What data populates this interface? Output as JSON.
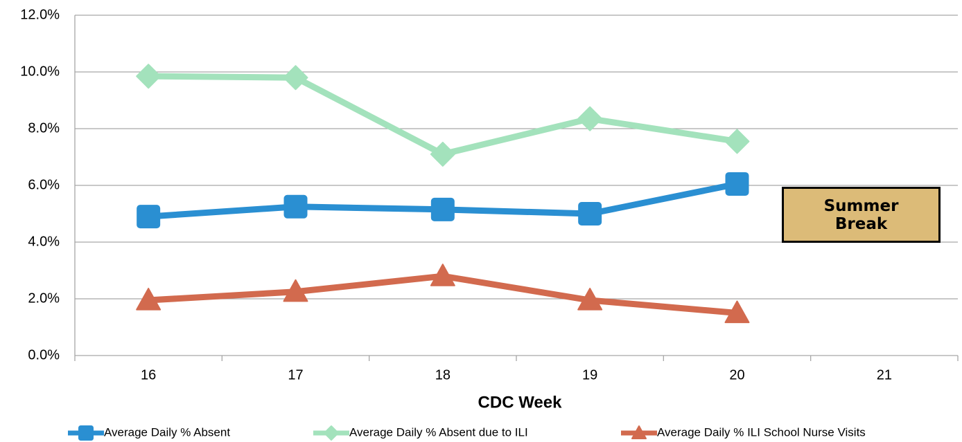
{
  "chart_data": {
    "type": "line",
    "x_label": "CDC Week",
    "categories": [
      "16",
      "17",
      "18",
      "19",
      "20",
      "21"
    ],
    "series": [
      {
        "name": "Average Daily % Absent",
        "color": "#2a8fd2",
        "marker": "square",
        "values": [
          4.9,
          5.25,
          5.15,
          5.0,
          6.05,
          null
        ]
      },
      {
        "name": "Average Daily % Absent due to ILI",
        "color": "#a3e2bc",
        "marker": "diamond",
        "values": [
          9.85,
          9.8,
          7.1,
          8.35,
          7.55,
          null
        ]
      },
      {
        "name": "Average Daily % ILI School Nurse Visits",
        "color": "#d26a4e",
        "marker": "triangle",
        "values": [
          1.95,
          2.25,
          2.8,
          1.95,
          1.5,
          null
        ]
      }
    ],
    "ylim": [
      0,
      12
    ],
    "yticks": [
      {
        "value": 0,
        "label": "0.0%"
      },
      {
        "value": 2,
        "label": "2.0%"
      },
      {
        "value": 4,
        "label": "4.0%"
      },
      {
        "value": 6,
        "label": "6.0%"
      },
      {
        "value": 8,
        "label": "8.0%"
      },
      {
        "value": 10,
        "label": "10.0%"
      },
      {
        "value": 12,
        "label": "12.0%"
      }
    ],
    "grid": true,
    "legend": "bottom",
    "annotation": "Summer Break"
  }
}
